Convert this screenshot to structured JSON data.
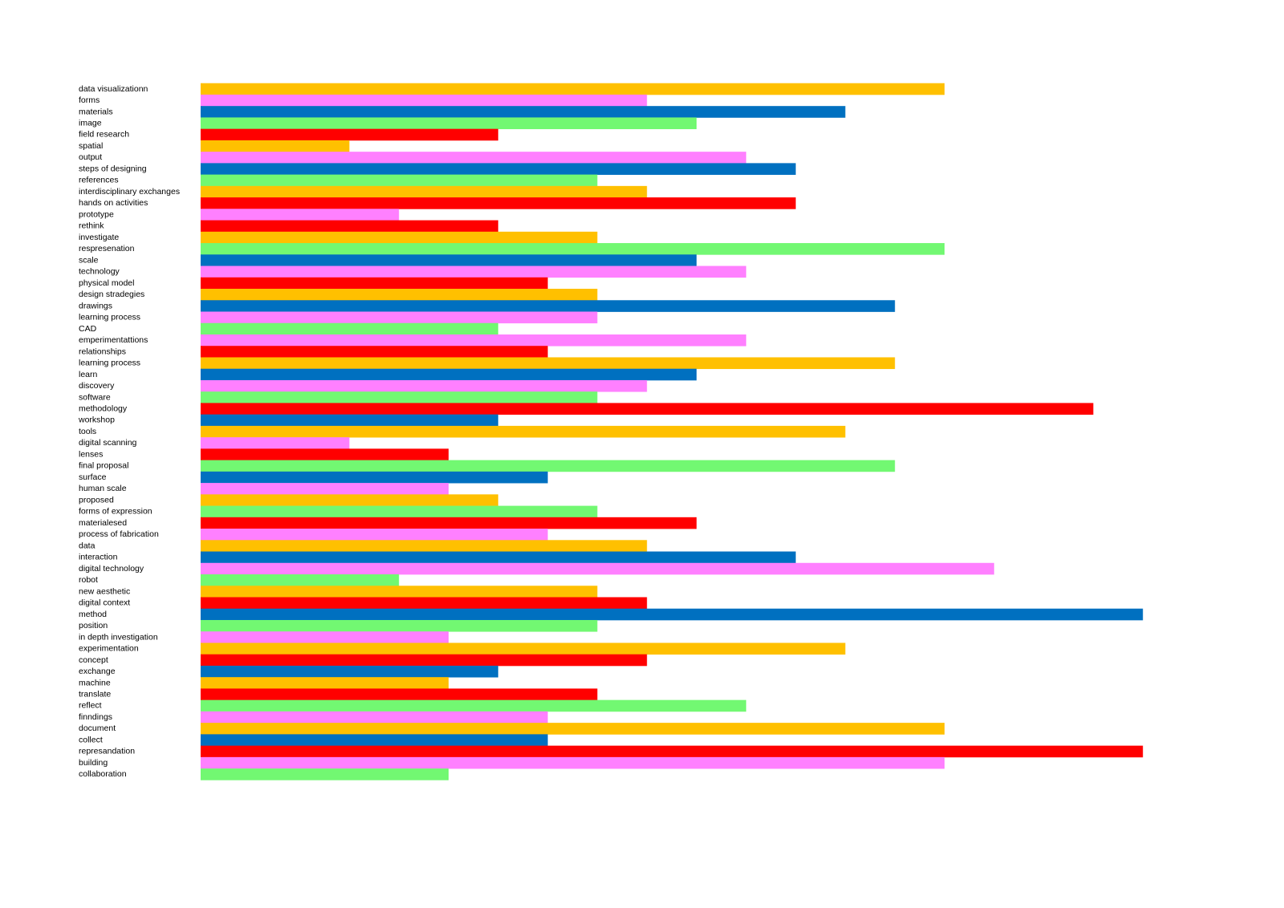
{
  "chart_data": {
    "type": "bar",
    "orientation": "horizontal",
    "categories": [
      "data visualizationn",
      "forms",
      "materials",
      "image",
      "field research",
      "spatial",
      "output",
      "steps of designing",
      "references",
      "interdisciplinary exchanges",
      "hands on activities",
      "prototype",
      "rethink",
      "investigate",
      "respresenation",
      "scale",
      "technology",
      "physical model",
      "design stradegies",
      "drawings",
      "learning process",
      "CAD",
      "emperimentattions",
      "relationships",
      "learning process",
      "learn",
      "discovery",
      "software",
      "methodology",
      "workshop",
      "tools",
      "digital scanning",
      "lenses",
      "final proposal",
      "surface",
      "human scale",
      "proposed",
      "forms of expression",
      "materialesed",
      "process of fabrication",
      "data",
      "interaction",
      "digital technology",
      "robot",
      "new aesthetic",
      "digital context",
      "method",
      "position",
      "in depth investigation",
      "experimentation",
      "concept",
      "exchange",
      "machine",
      "translate",
      "reflect",
      "finndings",
      "document",
      "collect",
      "represandation",
      "building",
      "collaboration"
    ],
    "values": [
      15,
      9,
      13,
      10,
      6,
      3,
      11,
      12,
      8,
      9,
      12,
      4,
      6,
      8,
      15,
      10,
      11,
      7,
      8,
      14,
      8,
      6,
      11,
      7,
      14,
      10,
      9,
      8,
      18,
      6,
      13,
      3,
      5,
      14,
      7,
      5,
      6,
      8,
      10,
      7,
      9,
      12,
      16,
      4,
      8,
      9,
      19,
      8,
      5,
      13,
      9,
      6,
      5,
      8,
      11,
      7,
      15,
      7,
      19,
      15,
      5
    ],
    "colors": [
      "#ffc000",
      "#ff80ff",
      "#0070c0",
      "#72f872",
      "#ff0000",
      "#ffc000",
      "#ff80ff",
      "#0070c0",
      "#72f872",
      "#ffc000",
      "#ff0000",
      "#ff80ff",
      "#ff0000",
      "#ffc000",
      "#72f872",
      "#0070c0",
      "#ff80ff",
      "#ff0000",
      "#ffc000",
      "#0070c0",
      "#ff80ff",
      "#72f872",
      "#ff80ff",
      "#ff0000",
      "#ffc000",
      "#0070c0",
      "#ff80ff",
      "#72f872",
      "#ff0000",
      "#0070c0",
      "#ffc000",
      "#ff80ff",
      "#ff0000",
      "#72f872",
      "#0070c0",
      "#ff80ff",
      "#ffc000",
      "#72f872",
      "#ff0000",
      "#ff80ff",
      "#ffc000",
      "#0070c0",
      "#ff80ff",
      "#72f872",
      "#ffc000",
      "#ff0000",
      "#0070c0",
      "#72f872",
      "#ff80ff",
      "#ffc000",
      "#ff0000",
      "#0070c0",
      "#ffc000",
      "#ff0000",
      "#72f872",
      "#ff80ff",
      "#ffc000",
      "#0070c0",
      "#ff0000",
      "#ff80ff",
      "#72f872"
    ]
  }
}
